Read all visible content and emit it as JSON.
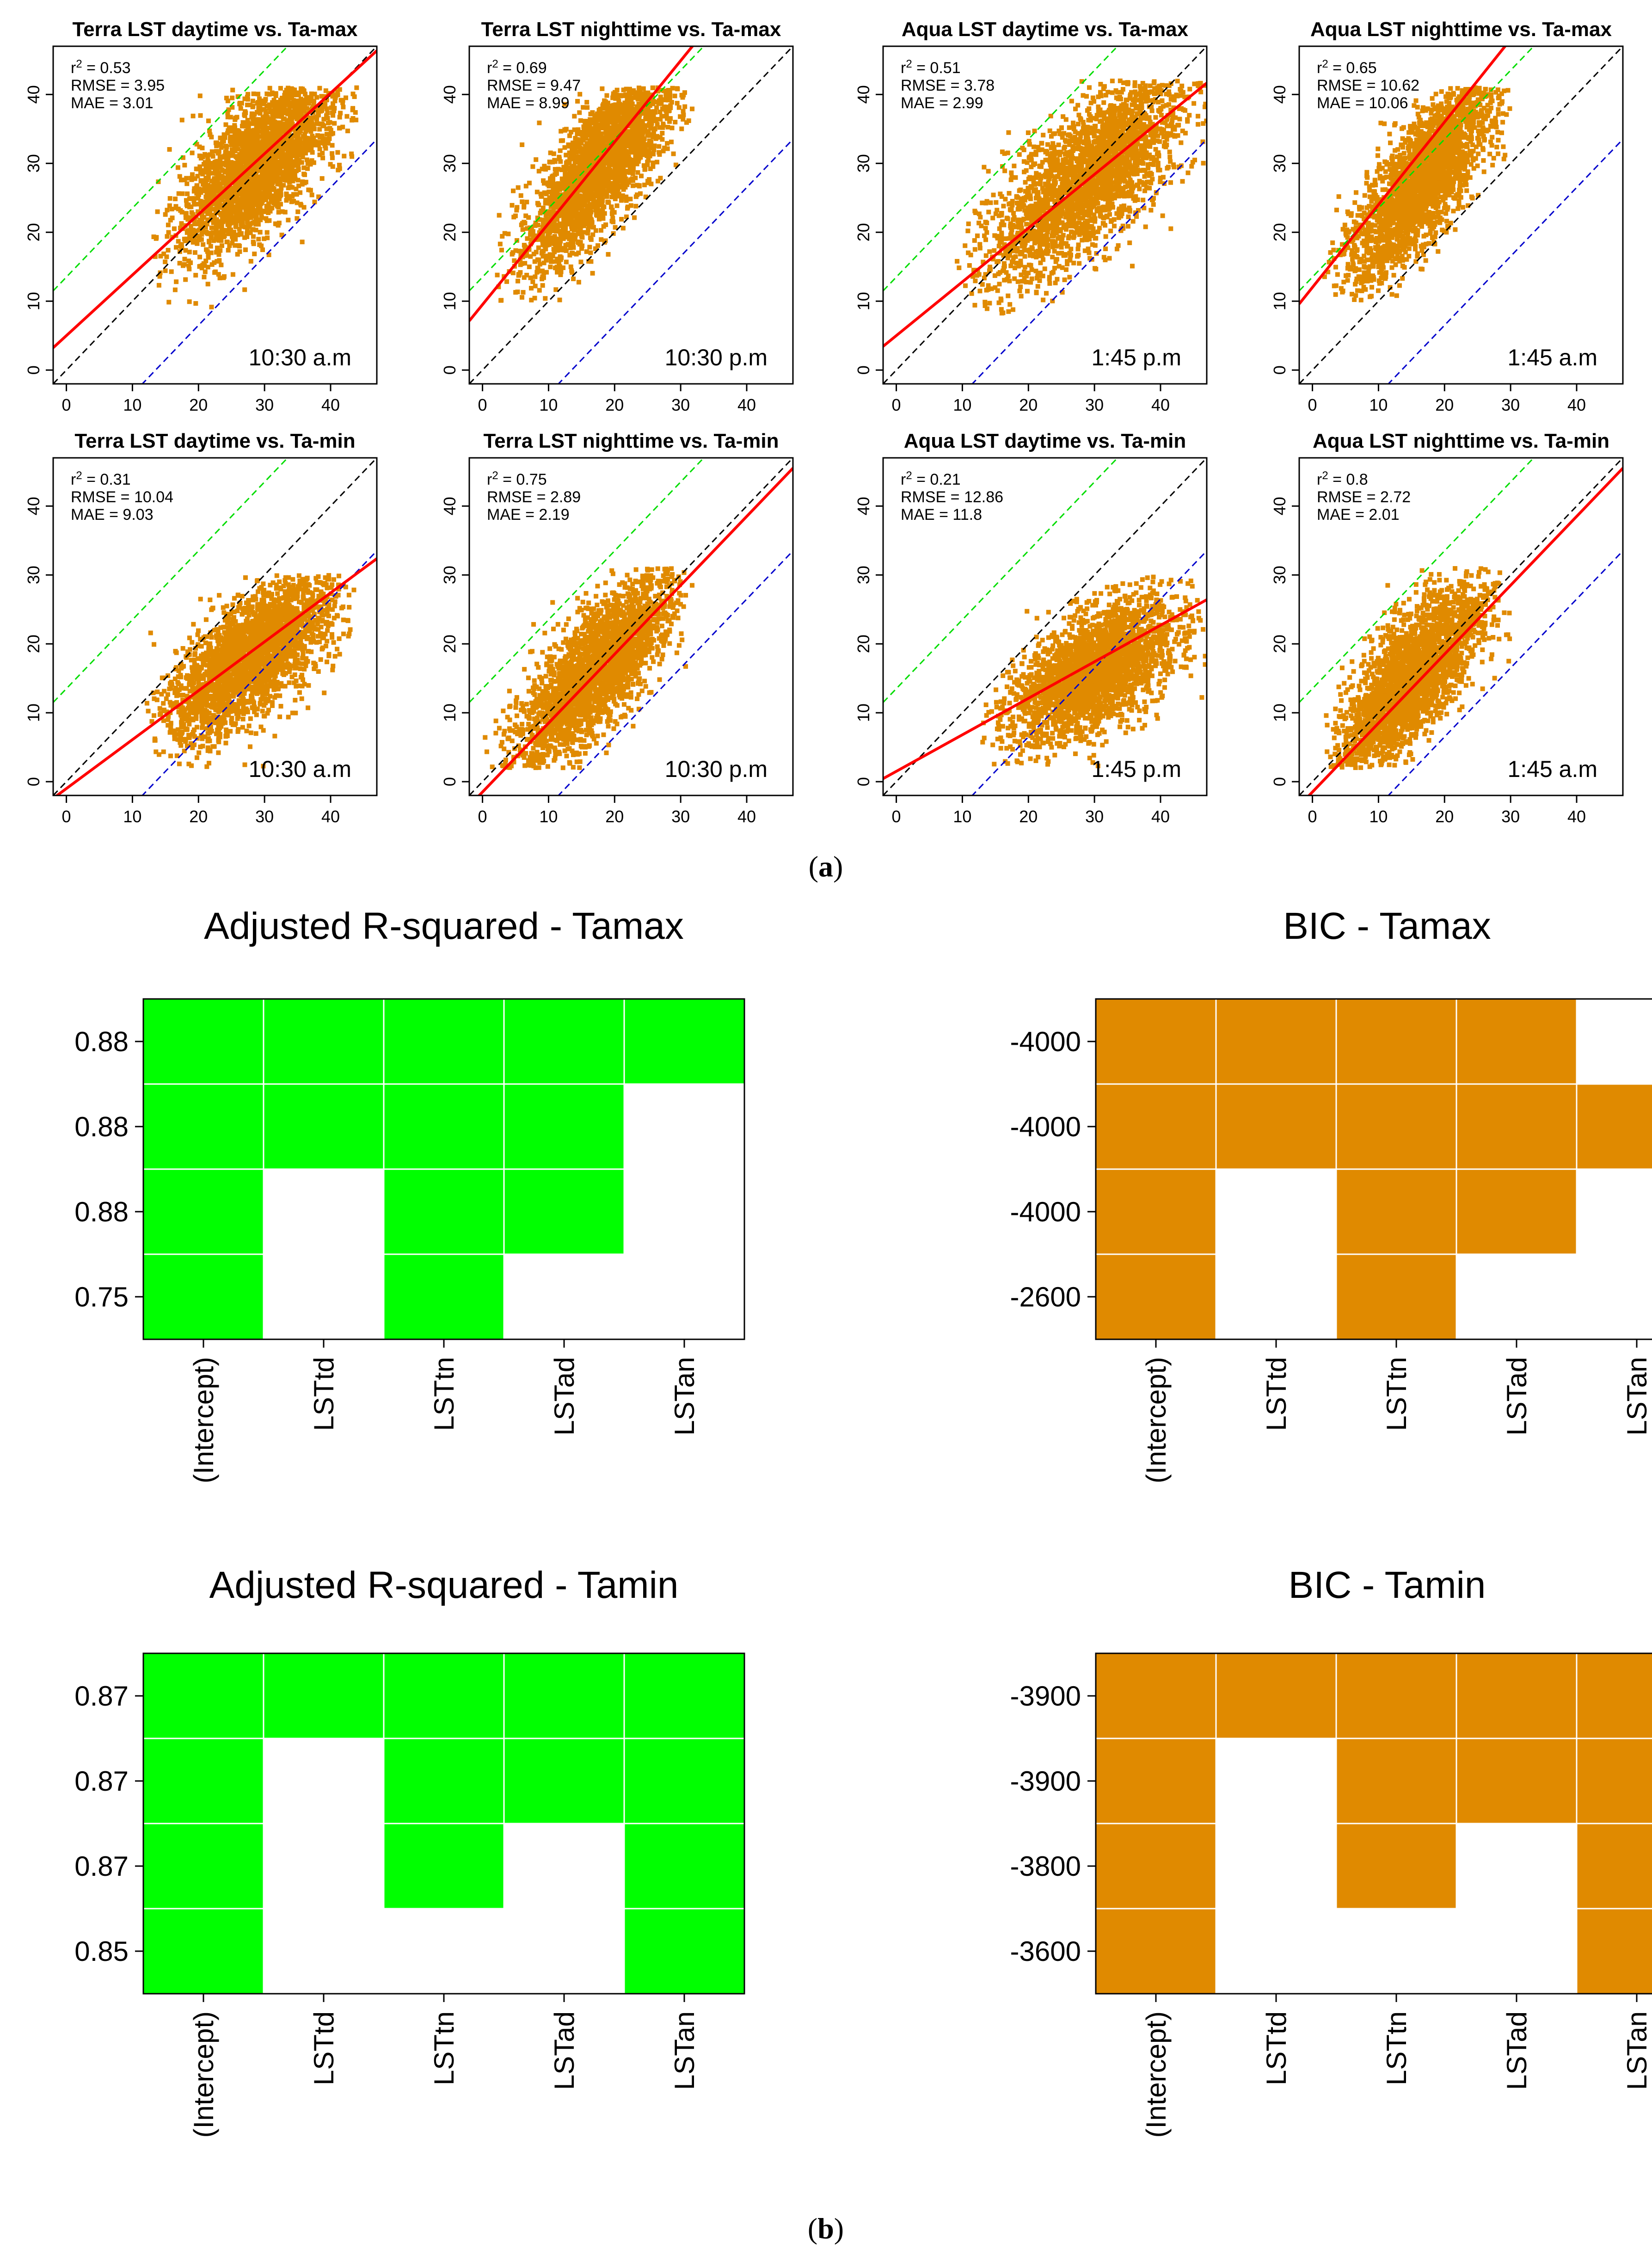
{
  "colors": {
    "points": "#e08a00",
    "fit": "#ff0000",
    "one_to_one": "#000000",
    "upper_band": "#00dd00",
    "lower_band": "#0000cc",
    "heat_green": "#00ff00",
    "heat_orange": "#e08a00"
  },
  "panel_a_label": "a",
  "panel_b_label": "b",
  "chart_data": [
    {
      "type": "scatter",
      "title": "Terra LST daytime vs. Ta-max",
      "time_label": "10:30 a.m",
      "stats": {
        "r2": "0.53",
        "rmse": "3.95",
        "mae": "3.01"
      },
      "xlim": [
        -2,
        47
      ],
      "ylim": [
        -2,
        47
      ],
      "x_ticks": [
        "0",
        "10",
        "20",
        "30",
        "40"
      ],
      "y_ticks": [
        "0",
        "10",
        "20",
        "30",
        "40"
      ],
      "fit_line": {
        "intercept": 5,
        "slope": 0.88
      },
      "one_to_one": true,
      "band_offset": 13.5,
      "point_cloud": {
        "x_range": [
          13,
          44
        ],
        "y_range": [
          8,
          41
        ],
        "center": [
          29,
          30
        ]
      }
    },
    {
      "type": "scatter",
      "title": "Terra LST nighttime vs. Ta-max",
      "time_label": "10:30 p.m",
      "stats": {
        "r2": "0.69",
        "rmse": "9.47",
        "mae": "8.99"
      },
      "xlim": [
        -2,
        47
      ],
      "ylim": [
        -2,
        47
      ],
      "x_ticks": [
        "0",
        "10",
        "20",
        "30",
        "40"
      ],
      "y_ticks": [
        "0",
        "10",
        "20",
        "30",
        "40"
      ],
      "fit_line": {
        "intercept": 9.5,
        "slope": 1.18
      },
      "one_to_one": true,
      "band_offset": 13.5,
      "point_cloud": {
        "x_range": [
          2,
          32
        ],
        "y_range": [
          10,
          41
        ],
        "center": [
          18,
          30
        ]
      }
    },
    {
      "type": "scatter",
      "title": "Aqua LST daytime vs. Ta-max",
      "time_label": "1:45 p.m",
      "stats": {
        "r2": "0.51",
        "rmse": "3.78",
        "mae": "2.99"
      },
      "xlim": [
        -2,
        47
      ],
      "ylim": [
        -2,
        47
      ],
      "x_ticks": [
        "0",
        "10",
        "20",
        "30",
        "40"
      ],
      "y_ticks": [
        "0",
        "10",
        "20",
        "30",
        "40"
      ],
      "fit_line": {
        "intercept": 5,
        "slope": 0.78
      },
      "one_to_one": true,
      "band_offset": 13.5,
      "point_cloud": {
        "x_range": [
          9,
          47
        ],
        "y_range": [
          8,
          42
        ],
        "center": [
          29,
          28
        ]
      }
    },
    {
      "type": "scatter",
      "title": "Aqua LST nighttime vs. Ta-max",
      "time_label": "1:45 a.m",
      "stats": {
        "r2": "0.65",
        "rmse": "10.62",
        "mae": "10.06"
      },
      "xlim": [
        -2,
        47
      ],
      "ylim": [
        -2,
        47
      ],
      "x_ticks": [
        "0",
        "10",
        "20",
        "30",
        "40"
      ],
      "y_ticks": [
        "0",
        "10",
        "20",
        "30",
        "40"
      ],
      "fit_line": {
        "intercept": 12,
        "slope": 1.2
      },
      "one_to_one": true,
      "band_offset": 13.5,
      "point_cloud": {
        "x_range": [
          1,
          30
        ],
        "y_range": [
          10,
          41
        ],
        "center": [
          17,
          28
        ]
      }
    },
    {
      "type": "scatter",
      "title": "Terra LST daytime vs. Ta-min",
      "time_label": "10:30 a.m",
      "stats": {
        "r2": "0.31",
        "rmse": "10.04",
        "mae": "9.03"
      },
      "xlim": [
        -2,
        47
      ],
      "ylim": [
        -2,
        47
      ],
      "x_ticks": [
        "0",
        "10",
        "20",
        "30",
        "40"
      ],
      "y_ticks": [
        "0",
        "10",
        "20",
        "30",
        "40"
      ],
      "fit_line": {
        "intercept": -1,
        "slope": 0.71
      },
      "one_to_one": true,
      "band_offset": 13.5,
      "point_cloud": {
        "x_range": [
          12,
          44
        ],
        "y_range": [
          2,
          30
        ],
        "center": [
          28,
          18
        ]
      }
    },
    {
      "type": "scatter",
      "title": "Terra LST nighttime vs. Ta-min",
      "time_label": "10:30 p.m",
      "stats": {
        "r2": "0.75",
        "rmse": "2.89",
        "mae": "2.19"
      },
      "xlim": [
        -2,
        47
      ],
      "ylim": [
        -2,
        47
      ],
      "x_ticks": [
        "0",
        "10",
        "20",
        "30",
        "40"
      ],
      "y_ticks": [
        "0",
        "10",
        "20",
        "30",
        "40"
      ],
      "fit_line": {
        "intercept": -1.5,
        "slope": 1.0
      },
      "one_to_one": true,
      "band_offset": 13.5,
      "point_cloud": {
        "x_range": [
          0,
          32
        ],
        "y_range": [
          2,
          31
        ],
        "center": [
          17,
          16
        ]
      }
    },
    {
      "type": "scatter",
      "title": "Aqua LST daytime vs. Ta-min",
      "time_label": "1:45 p.m",
      "stats": {
        "r2": "0.21",
        "rmse": "12.86",
        "mae": "11.8"
      },
      "xlim": [
        -2,
        47
      ],
      "ylim": [
        -2,
        47
      ],
      "x_ticks": [
        "0",
        "10",
        "20",
        "30",
        "40"
      ],
      "y_ticks": [
        "0",
        "10",
        "20",
        "30",
        "40"
      ],
      "fit_line": {
        "intercept": 1.5,
        "slope": 0.53
      },
      "one_to_one": true,
      "band_offset": 13.5,
      "point_cloud": {
        "x_range": [
          13,
          47
        ],
        "y_range": [
          2,
          30
        ],
        "center": [
          30,
          16
        ]
      }
    },
    {
      "type": "scatter",
      "title": "Aqua LST nighttime vs. Ta-min",
      "time_label": "1:45 a.m",
      "stats": {
        "r2": "0.8",
        "rmse": "2.72",
        "mae": "2.01"
      },
      "xlim": [
        -2,
        47
      ],
      "ylim": [
        -2,
        47
      ],
      "x_ticks": [
        "0",
        "10",
        "20",
        "30",
        "40"
      ],
      "y_ticks": [
        "0",
        "10",
        "20",
        "30",
        "40"
      ],
      "fit_line": {
        "intercept": -1.5,
        "slope": 1.0
      },
      "one_to_one": true,
      "band_offset": 13.5,
      "point_cloud": {
        "x_range": [
          2,
          30
        ],
        "y_range": [
          2,
          31
        ],
        "center": [
          15,
          15
        ]
      }
    },
    {
      "type": "heatmap",
      "title": "Adjusted R-squared - Tamax",
      "color": "green",
      "columns": [
        "(Intercept)",
        "LSTtd",
        "LSTtn",
        "LSTad",
        "LSTan"
      ],
      "row_labels": [
        "0.88",
        "0.88",
        "0.88",
        "0.75"
      ],
      "cells": [
        [
          1,
          1,
          1,
          1,
          1
        ],
        [
          1,
          1,
          1,
          1,
          0
        ],
        [
          1,
          0,
          1,
          1,
          0
        ],
        [
          1,
          0,
          1,
          0,
          0
        ]
      ]
    },
    {
      "type": "heatmap",
      "title": "BIC - Tamax",
      "color": "orange",
      "columns": [
        "(Intercept)",
        "LSTtd",
        "LSTtn",
        "LSTad",
        "LSTan"
      ],
      "row_labels": [
        "-4000",
        "-4000",
        "-4000",
        "-2600"
      ],
      "cells": [
        [
          1,
          1,
          1,
          1,
          0
        ],
        [
          1,
          1,
          1,
          1,
          1
        ],
        [
          1,
          0,
          1,
          1,
          0
        ],
        [
          1,
          0,
          1,
          0,
          0
        ]
      ]
    },
    {
      "type": "heatmap",
      "title": "Adjusted R-squared - Tamin",
      "color": "green",
      "columns": [
        "(Intercept)",
        "LSTtd",
        "LSTtn",
        "LSTad",
        "LSTan"
      ],
      "row_labels": [
        "0.87",
        "0.87",
        "0.87",
        "0.85"
      ],
      "cells": [
        [
          1,
          1,
          1,
          1,
          1
        ],
        [
          1,
          0,
          1,
          1,
          1
        ],
        [
          1,
          0,
          1,
          0,
          1
        ],
        [
          1,
          0,
          0,
          0,
          1
        ]
      ]
    },
    {
      "type": "heatmap",
      "title": "BIC - Tamin",
      "color": "orange",
      "columns": [
        "(Intercept)",
        "LSTtd",
        "LSTtn",
        "LSTad",
        "LSTan"
      ],
      "row_labels": [
        "-3900",
        "-3900",
        "-3800",
        "-3600"
      ],
      "cells": [
        [
          1,
          1,
          1,
          1,
          1
        ],
        [
          1,
          0,
          1,
          1,
          1
        ],
        [
          1,
          0,
          1,
          0,
          1
        ],
        [
          1,
          0,
          0,
          0,
          1
        ]
      ]
    }
  ]
}
